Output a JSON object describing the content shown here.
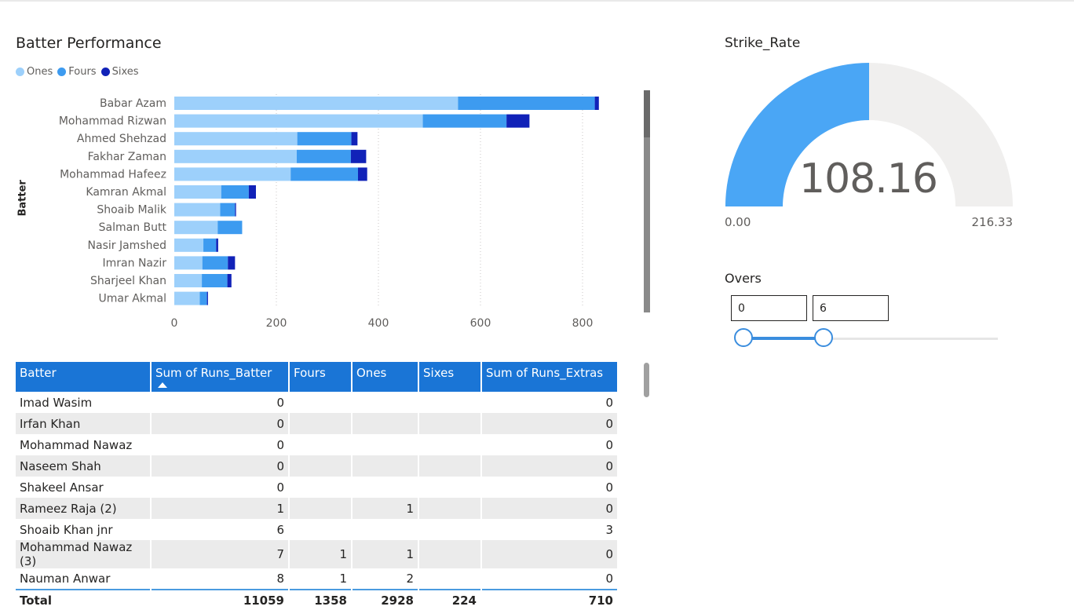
{
  "chart": {
    "title": "Batter Performance",
    "y_axis_title": "Batter"
  },
  "legend": [
    {
      "label": "Ones",
      "color": "#9dd0fb"
    },
    {
      "label": "Fours",
      "color": "#3d9bf0"
    },
    {
      "label": "Sixes",
      "color": "#1122b8"
    }
  ],
  "chart_data": {
    "type": "bar",
    "orientation": "horizontal",
    "stacked": true,
    "title": "Batter Performance",
    "ylabel": "Batter",
    "xlim": [
      0,
      850
    ],
    "xticks": [
      0,
      200,
      400,
      600,
      800
    ],
    "categories": [
      "Babar Azam",
      "Mohammad Rizwan",
      "Ahmed Shehzad",
      "Fakhar Zaman",
      "Mohammad Hafeez",
      "Kamran Akmal",
      "Shoaib Malik",
      "Salman Butt",
      "Nasir Jamshed",
      "Imran Nazir",
      "Sharjeel Khan",
      "Umar Akmal"
    ],
    "series": [
      {
        "name": "Ones",
        "color": "#9dd0fb",
        "values": [
          556,
          487,
          241,
          240,
          228,
          92,
          90,
          85,
          57,
          55,
          54,
          50
        ]
      },
      {
        "name": "Fours",
        "color": "#3d9bf0",
        "values": [
          268,
          164,
          106,
          106,
          132,
          54,
          29,
          48,
          25,
          50,
          50,
          14
        ]
      },
      {
        "name": "Sixes",
        "color": "#1122b8",
        "values": [
          8,
          45,
          12,
          30,
          18,
          14,
          2,
          0,
          4,
          14,
          8,
          2
        ]
      }
    ],
    "grid": true,
    "legend_position": "top-left"
  },
  "table": {
    "headers": [
      "Batter",
      "Sum of Runs_Batter",
      "Fours",
      "Ones",
      "Sixes",
      "Sum of Runs_Extras"
    ],
    "rows": [
      [
        "Imad Wasim",
        "0",
        "",
        "",
        "",
        "0"
      ],
      [
        "Irfan Khan",
        "0",
        "",
        "",
        "",
        "0"
      ],
      [
        "Mohammad Nawaz",
        "0",
        "",
        "",
        "",
        "0"
      ],
      [
        "Naseem Shah",
        "0",
        "",
        "",
        "",
        "0"
      ],
      [
        "Shakeel Ansar",
        "0",
        "",
        "",
        "",
        "0"
      ],
      [
        "Rameez Raja (2)",
        "1",
        "",
        "1",
        "",
        "0"
      ],
      [
        "Shoaib Khan jnr",
        "6",
        "",
        "",
        "",
        "3"
      ],
      [
        "Mohammad Nawaz (3)",
        "7",
        "1",
        "1",
        "",
        "0"
      ],
      [
        "Nauman Anwar",
        "8",
        "1",
        "2",
        "",
        "0"
      ]
    ],
    "total": [
      "Total",
      "11059",
      "1358",
      "2928",
      "224",
      "710"
    ]
  },
  "gauge": {
    "title": "Strike_Rate",
    "value": "108.16",
    "min": "0.00",
    "max": "216.33",
    "fill_fraction": 0.5,
    "fill_color": "#4aa6f5",
    "track_color": "#f0efee"
  },
  "overs": {
    "title": "Overs",
    "from": "0",
    "to": "6"
  }
}
